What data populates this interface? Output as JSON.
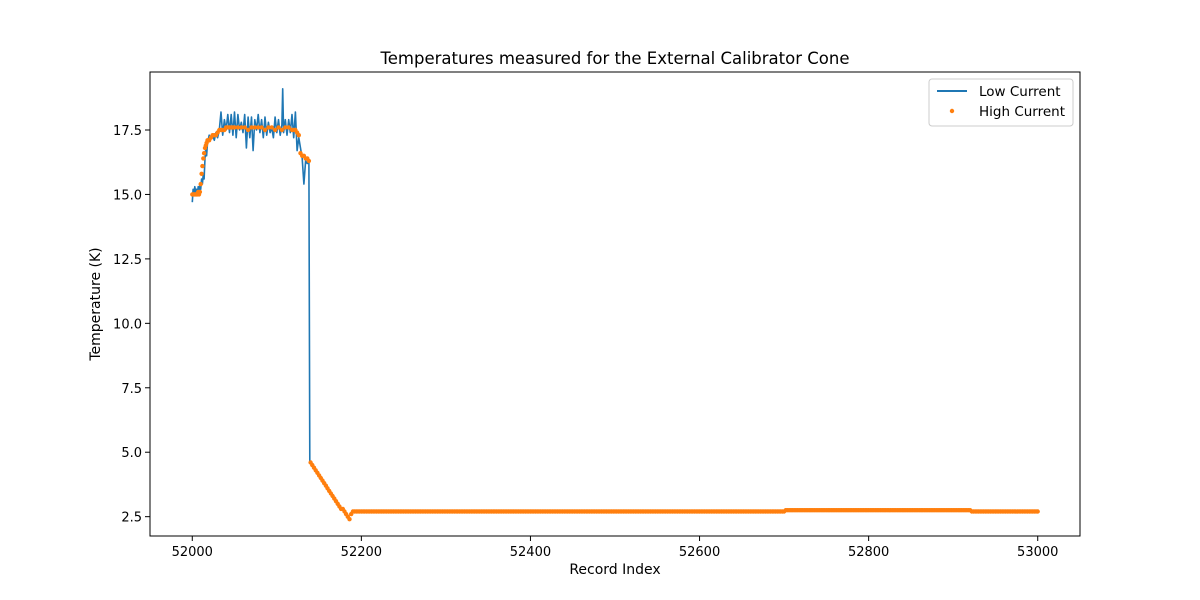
{
  "chart_data": {
    "type": "line",
    "title": "Temperatures measured for the External Calibrator Cone",
    "xlabel": "Record Index",
    "ylabel": "Temperature (K)",
    "xlim": [
      51950,
      53050
    ],
    "ylim": [
      1.75,
      19.75
    ],
    "xticks": [
      52000,
      52200,
      52400,
      52600,
      52800,
      53000
    ],
    "yticks": [
      2.5,
      5.0,
      7.5,
      10.0,
      12.5,
      15.0,
      17.5
    ],
    "ytick_labels": [
      "2.5",
      "5.0",
      "7.5",
      "10.0",
      "12.5",
      "15.0",
      "17.5"
    ],
    "legend_position": "top-right",
    "grid": false,
    "series": [
      {
        "name": "Low Current",
        "style": "line",
        "color": "#1f77b4",
        "x": [
          52000,
          52001,
          52002,
          52003,
          52004,
          52005,
          52006,
          52007,
          52008,
          52009,
          52010,
          52011,
          52012,
          52013,
          52014,
          52015,
          52016,
          52017,
          52018,
          52020,
          52022,
          52024,
          52026,
          52028,
          52030,
          52032,
          52034,
          52036,
          52038,
          52040,
          52042,
          52044,
          52046,
          52048,
          52050,
          52052,
          52054,
          52056,
          52058,
          52060,
          52062,
          52064,
          52066,
          52068,
          52070,
          52072,
          52074,
          52076,
          52078,
          52080,
          52082,
          52084,
          52086,
          52088,
          52090,
          52092,
          52094,
          52096,
          52098,
          52100,
          52102,
          52104,
          52106,
          52107,
          52108,
          52110,
          52112,
          52114,
          52116,
          52118,
          52120,
          52122,
          52124,
          52126,
          52128,
          52130,
          52132,
          52134,
          52136,
          52137,
          52138,
          52139,
          52140
        ],
        "y": [
          14.7,
          15.2,
          15.0,
          15.3,
          15.1,
          15.2,
          15.0,
          15.3,
          15.1,
          15.4,
          15.2,
          15.6,
          15.4,
          15.8,
          15.6,
          16.4,
          16.8,
          16.5,
          17.0,
          17.3,
          17.2,
          17.3,
          17.1,
          17.4,
          17.2,
          17.5,
          18.2,
          17.3,
          17.9,
          17.5,
          18.1,
          17.4,
          18.1,
          17.3,
          18.2,
          17.2,
          18.1,
          17.5,
          17.8,
          17.4,
          18.1,
          16.8,
          18.0,
          17.2,
          18.0,
          16.7,
          17.9,
          17.5,
          18.1,
          17.4,
          17.9,
          17.2,
          18.0,
          17.3,
          17.8,
          17.4,
          17.6,
          17.2,
          18.0,
          17.4,
          17.9,
          17.3,
          17.7,
          19.1,
          17.4,
          17.9,
          17.3,
          17.9,
          17.4,
          18.1,
          17.2,
          18.2,
          16.7,
          17.2,
          16.8,
          16.4,
          15.4,
          16.3,
          16.2,
          16.3,
          16.3,
          4.6,
          4.6
        ]
      },
      {
        "name": "High Current",
        "style": "scatter",
        "color": "#ff7f0e",
        "segments": [
          {
            "x": [
              52000,
              52001,
              52002,
              52003,
              52004,
              52005,
              52006,
              52007,
              52008,
              52009,
              52010,
              52011,
              52012,
              52013,
              52014,
              52015,
              52016,
              52017,
              52018,
              52019,
              52020,
              52022,
              52024,
              52026,
              52028,
              52030,
              52032,
              52034,
              52036,
              52038,
              52040,
              52042,
              52044,
              52046,
              52048,
              52050,
              52054,
              52058,
              52062,
              52066,
              52070,
              52074,
              52078,
              52082,
              52086,
              52090,
              52094,
              52098,
              52102,
              52106,
              52110,
              52114,
              52118,
              52120,
              52122,
              52124,
              52126,
              52128,
              52130,
              52132,
              52134,
              52136,
              52138,
              52140,
              52142,
              52144,
              52146,
              52148,
              52150,
              52152,
              52154,
              52156,
              52158,
              52160,
              52162,
              52164,
              52166,
              52168,
              52170,
              52172,
              52174,
              52176,
              52178,
              52180,
              52182,
              52184,
              52186,
              52188,
              52190,
              52192,
              52194,
              52196,
              52198
            ],
            "y": [
              15.0,
              15.0,
              15.0,
              15.0,
              15.0,
              15.0,
              15.0,
              15.1,
              15.0,
              15.1,
              15.4,
              15.8,
              16.1,
              16.4,
              16.6,
              16.8,
              16.9,
              17.0,
              17.1,
              17.1,
              17.1,
              17.2,
              17.3,
              17.3,
              17.3,
              17.4,
              17.5,
              17.5,
              17.5,
              17.5,
              17.6,
              17.6,
              17.6,
              17.6,
              17.6,
              17.6,
              17.6,
              17.6,
              17.6,
              17.5,
              17.6,
              17.6,
              17.6,
              17.6,
              17.5,
              17.6,
              17.6,
              17.5,
              17.6,
              17.5,
              17.6,
              17.6,
              17.5,
              17.5,
              17.5,
              17.4,
              17.3,
              16.6,
              16.5,
              16.5,
              16.4,
              16.4,
              16.3,
              4.6,
              4.5,
              4.4,
              4.3,
              4.2,
              4.1,
              4.0,
              3.9,
              3.8,
              3.7,
              3.6,
              3.5,
              3.4,
              3.3,
              3.2,
              3.1,
              3.0,
              2.9,
              2.8,
              2.8,
              2.7,
              2.6,
              2.5,
              2.4,
              2.6,
              2.7,
              2.7,
              2.7,
              2.7,
              2.7
            ]
          },
          {
            "x_start": 52200,
            "x_end": 52700,
            "step": 2,
            "y": 2.7
          },
          {
            "x_start": 52702,
            "x_end": 52920,
            "step": 2,
            "y": 2.75
          },
          {
            "x_start": 52922,
            "x_end": 53000,
            "step": 2,
            "y": 2.7
          }
        ]
      }
    ]
  }
}
